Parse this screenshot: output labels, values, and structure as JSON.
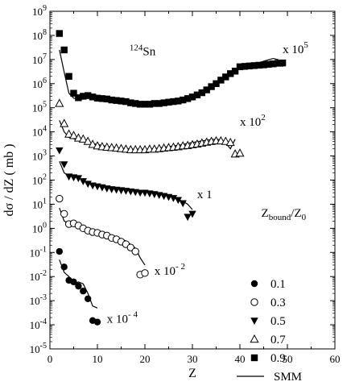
{
  "chart_data": {
    "type": "scatter",
    "title": "",
    "xlabel": "Z",
    "ylabel": "dσ / dZ ( mb )",
    "xlim": [
      0,
      60
    ],
    "ylim": [
      1e-05,
      1000000000.0
    ],
    "yscale": "log",
    "x_ticks": [
      0,
      10,
      20,
      30,
      40,
      50,
      60
    ],
    "y_tick_exponents": [
      -5,
      -4,
      -3,
      -2,
      -1,
      0,
      1,
      2,
      3,
      4,
      5,
      6,
      7,
      8,
      9
    ],
    "system_label": {
      "mass": "124",
      "element": "Sn"
    },
    "legend": {
      "title": {
        "main": "Z",
        "sub1": "bound",
        "mid": "/Z",
        "sub2": "0"
      },
      "placement": "right",
      "entries": [
        {
          "marker": "filled-circle",
          "label": "0.1"
        },
        {
          "marker": "open-circle",
          "label": "0.3"
        },
        {
          "marker": "filled-triangle-down",
          "label": "0.5"
        },
        {
          "marker": "open-triangle-up",
          "label": "0.7"
        },
        {
          "marker": "filled-square",
          "label": "0.9"
        },
        {
          "marker": "line",
          "label": "SMM"
        }
      ]
    },
    "series": [
      {
        "name": "0.9",
        "marker": "filled-square",
        "scale": "x 10",
        "scale_exp": "5",
        "points": [
          [
            2,
            120000000.0
          ],
          [
            3,
            25000000.0
          ],
          [
            4,
            2000000.0
          ],
          [
            5,
            400000.0
          ],
          [
            6,
            260000.0
          ],
          [
            7,
            300000.0
          ],
          [
            8,
            320000.0
          ],
          [
            9,
            280000.0
          ],
          [
            10,
            250000.0
          ],
          [
            11,
            240000.0
          ],
          [
            12,
            230000.0
          ],
          [
            13,
            210000.0
          ],
          [
            14,
            200000.0
          ],
          [
            15,
            190000.0
          ],
          [
            16,
            180000.0
          ],
          [
            17,
            160000.0
          ],
          [
            18,
            150000.0
          ],
          [
            19,
            140000.0
          ],
          [
            20,
            140000.0
          ],
          [
            21,
            140000.0
          ],
          [
            22,
            150000.0
          ],
          [
            23,
            150000.0
          ],
          [
            24,
            160000.0
          ],
          [
            25,
            170000.0
          ],
          [
            26,
            180000.0
          ],
          [
            27,
            190000.0
          ],
          [
            28,
            210000.0
          ],
          [
            29,
            240000.0
          ],
          [
            30,
            280000.0
          ],
          [
            31,
            340000.0
          ],
          [
            32,
            420000.0
          ],
          [
            33,
            550000.0
          ],
          [
            34,
            750000.0
          ],
          [
            35,
            1000000.0
          ],
          [
            36,
            1400000.0
          ],
          [
            37,
            1900000.0
          ],
          [
            38,
            2600000.0
          ],
          [
            39,
            3300000.0
          ],
          [
            40,
            5000000.0
          ],
          [
            41,
            5200000.0
          ],
          [
            42,
            5400000.0
          ],
          [
            43,
            5600000.0
          ],
          [
            44,
            5800000.0
          ],
          [
            45,
            6000000.0
          ],
          [
            46,
            6300000.0
          ],
          [
            47,
            6600000.0
          ],
          [
            48,
            7000000.0
          ],
          [
            49,
            7200000.0
          ]
        ],
        "smm": [
          [
            2,
            25000000.0
          ],
          [
            3,
            3000000.0
          ],
          [
            4,
            400000.0
          ],
          [
            5,
            250000.0
          ],
          [
            6,
            230000.0
          ],
          [
            8,
            250000.0
          ],
          [
            10,
            240000.0
          ],
          [
            12,
            220000.0
          ],
          [
            14,
            190000.0
          ],
          [
            16,
            160000.0
          ],
          [
            18,
            140000.0
          ],
          [
            20,
            130000.0
          ],
          [
            22,
            140000.0
          ],
          [
            24,
            150000.0
          ],
          [
            26,
            170000.0
          ],
          [
            28,
            200000.0
          ],
          [
            30,
            260000.0
          ],
          [
            32,
            400000.0
          ],
          [
            34,
            700000.0
          ],
          [
            36,
            1300000.0
          ],
          [
            38,
            2400000.0
          ],
          [
            40,
            4200000.0
          ],
          [
            41,
            4500000.0
          ],
          [
            43,
            6000000.0
          ],
          [
            45,
            8500000.0
          ],
          [
            47,
            11000000.0
          ],
          [
            48,
            10000000.0
          ],
          [
            49,
            5000000.0
          ]
        ]
      },
      {
        "name": "0.7",
        "marker": "open-triangle-up",
        "scale": "x 10",
        "scale_exp": "2",
        "points": [
          [
            2,
            150000.0
          ],
          [
            3,
            22000.0
          ],
          [
            4,
            8000.0
          ],
          [
            5,
            7000.0
          ],
          [
            6,
            5500.0
          ],
          [
            7,
            5000.0
          ],
          [
            8,
            4000.0
          ],
          [
            9,
            3000.0
          ],
          [
            10,
            2600.0
          ],
          [
            11,
            2400.0
          ],
          [
            12,
            2300.0
          ],
          [
            13,
            2200.0
          ],
          [
            14,
            2100.0
          ],
          [
            15,
            2000.0
          ],
          [
            16,
            1900.0
          ],
          [
            17,
            1800.0
          ],
          [
            18,
            1800.0
          ],
          [
            19,
            1800.0
          ],
          [
            20,
            1800.0
          ],
          [
            21,
            1900.0
          ],
          [
            22,
            1900.0
          ],
          [
            23,
            2000.0
          ],
          [
            24,
            2100.0
          ],
          [
            25,
            2200.0
          ],
          [
            26,
            2300.0
          ],
          [
            27,
            2400.0
          ],
          [
            28,
            2600.0
          ],
          [
            29,
            2700.0
          ],
          [
            30,
            2900.0
          ],
          [
            31,
            3100.0
          ],
          [
            32,
            3400.0
          ],
          [
            33,
            3700.0
          ],
          [
            34,
            4000.0
          ],
          [
            35,
            4200.0
          ],
          [
            36,
            4200.0
          ],
          [
            37,
            4000.0
          ],
          [
            38,
            3600.0
          ],
          [
            39,
            1200.0
          ],
          [
            40,
            1300.0
          ]
        ],
        "smm": [
          [
            2,
            30000.0
          ],
          [
            3,
            10000.0
          ],
          [
            4,
            6000.0
          ],
          [
            6,
            4500.0
          ],
          [
            8,
            3500.0
          ],
          [
            10,
            3000.0
          ],
          [
            12,
            2500.0
          ],
          [
            14,
            2200.0
          ],
          [
            16,
            2000.0
          ],
          [
            18,
            1900.0
          ],
          [
            20,
            1900.0
          ],
          [
            22,
            2000.0
          ],
          [
            24,
            2300.0
          ],
          [
            26,
            2600.0
          ],
          [
            28,
            3000.0
          ],
          [
            30,
            3600.0
          ],
          [
            32,
            4200.0
          ],
          [
            34,
            4800.0
          ],
          [
            35,
            5000.0
          ],
          [
            36,
            4600.0
          ],
          [
            37,
            3500.0
          ],
          [
            38,
            2000.0
          ],
          [
            39,
            5000.0
          ]
        ]
      },
      {
        "name": "0.5",
        "marker": "filled-triangle-down",
        "scale": "x 1",
        "scale_exp": "",
        "points": [
          [
            2,
            1700.0
          ],
          [
            3,
            450.0
          ],
          [
            4,
            140.0
          ],
          [
            5,
            130.0
          ],
          [
            6,
            120.0
          ],
          [
            7,
            90.0
          ],
          [
            8,
            70.0
          ],
          [
            9,
            60.0
          ],
          [
            10,
            55.0
          ],
          [
            11,
            50.0
          ],
          [
            12,
            45.0
          ],
          [
            13,
            42.0
          ],
          [
            14,
            40.0
          ],
          [
            15,
            38.0
          ],
          [
            16,
            36.0
          ],
          [
            17,
            34.0
          ],
          [
            18,
            32.0
          ],
          [
            19,
            30.0
          ],
          [
            20,
            30.0
          ],
          [
            21,
            28.0
          ],
          [
            22,
            26.0
          ],
          [
            23,
            24.0
          ],
          [
            24,
            22.0
          ],
          [
            25,
            20.0
          ],
          [
            26,
            18.0
          ],
          [
            27,
            15.0
          ],
          [
            28,
            11.0
          ],
          [
            29,
            3
          ],
          [
            30,
            4
          ]
        ],
        "smm": [
          [
            2,
            600.0
          ],
          [
            3,
            200.0
          ],
          [
            4,
            150.0
          ],
          [
            6,
            120.0
          ],
          [
            8,
            80.0
          ],
          [
            10,
            65.0
          ],
          [
            12,
            55.0
          ],
          [
            14,
            45.0
          ],
          [
            16,
            40.0
          ],
          [
            18,
            36.0
          ],
          [
            20,
            33.0
          ],
          [
            22,
            30.0
          ],
          [
            24,
            26.0
          ],
          [
            26,
            20.0
          ],
          [
            28,
            13.0
          ],
          [
            29,
            10.0
          ],
          [
            30,
            6
          ]
        ]
      },
      {
        "name": "0.3",
        "marker": "open-circle",
        "scale": "x 10",
        "scale_exp": "-2",
        "points": [
          [
            2,
            17.0
          ],
          [
            3,
            4
          ],
          [
            4,
            1.5
          ],
          [
            5,
            1.6
          ],
          [
            6,
            1.3
          ],
          [
            7,
            1
          ],
          [
            8,
            0.8
          ],
          [
            9,
            0.7
          ],
          [
            10,
            0.65
          ],
          [
            11,
            0.55
          ],
          [
            12,
            0.5
          ],
          [
            13,
            0.4
          ],
          [
            14,
            0.35
          ],
          [
            15,
            0.28
          ],
          [
            16,
            0.22
          ],
          [
            17,
            0.16
          ],
          [
            18,
            0.11
          ],
          [
            19,
            0.012
          ],
          [
            20,
            0.014
          ]
        ],
        "smm": [
          [
            2,
            7
          ],
          [
            3,
            2
          ],
          [
            4,
            1.6
          ],
          [
            6,
            1.4
          ],
          [
            8,
            1
          ],
          [
            10,
            0.8
          ],
          [
            12,
            0.6
          ],
          [
            14,
            0.45
          ],
          [
            16,
            0.3
          ],
          [
            18,
            0.15
          ],
          [
            19,
            0.06
          ],
          [
            20,
            0.03
          ]
        ]
      },
      {
        "name": "0.1",
        "marker": "filled-circle",
        "scale": "x 10",
        "scale_exp": "-4",
        "points": [
          [
            2,
            0.11
          ],
          [
            3,
            0.025
          ],
          [
            4,
            0.007
          ],
          [
            5,
            0.006
          ],
          [
            6,
            0.004
          ],
          [
            7,
            0.0025
          ],
          [
            8,
            0.0012
          ],
          [
            9,
            0.00015
          ],
          [
            10,
            0.00013
          ]
        ],
        "smm": [
          [
            2,
            0.05
          ],
          [
            3,
            0.015
          ],
          [
            4,
            0.01
          ],
          [
            5,
            0.005
          ],
          [
            6,
            0.006
          ],
          [
            7,
            0.005
          ],
          [
            8,
            0.002
          ],
          [
            9,
            0.0006
          ],
          [
            10,
            0.0005
          ]
        ]
      }
    ]
  }
}
